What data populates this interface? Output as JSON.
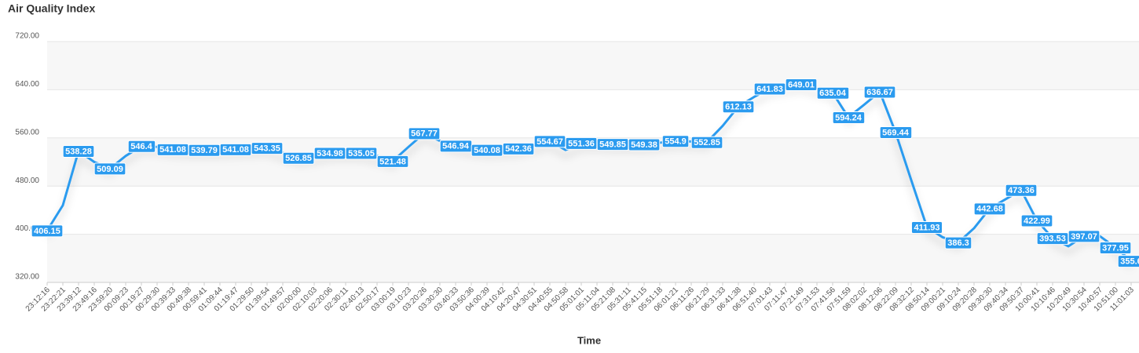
{
  "chart_data": {
    "type": "line",
    "title": "Air Quality Index",
    "x_label": "Time",
    "categories": [
      "23:12:16",
      "23:22:21",
      "23:39:12",
      "23:49:16",
      "23:59:20",
      "00:09:23",
      "00:19:27",
      "00:29:30",
      "00:39:33",
      "00:49:38",
      "00:59:41",
      "01:09:44",
      "01:19:47",
      "01:29:50",
      "01:39:54",
      "01:49:57",
      "02:00:00",
      "02:10:03",
      "02:20:06",
      "02:30:11",
      "02:40:13",
      "02:50:17",
      "03:00:19",
      "03:10:23",
      "03:20:26",
      "03:30:30",
      "03:40:33",
      "03:50:36",
      "04:00:39",
      "04:10:42",
      "04:20:47",
      "04:30:51",
      "04:40:55",
      "04:50:58",
      "05:01:01",
      "05:11:04",
      "05:21:08",
      "05:31:11",
      "05:41:15",
      "05:51:18",
      "06:01:21",
      "06:11:26",
      "06:21:29",
      "06:31:33",
      "06:41:38",
      "06:51:40",
      "07:01:43",
      "07:11:47",
      "07:21:49",
      "07:31:53",
      "07:41:56",
      "07:51:59",
      "08:02:02",
      "08:12:06",
      "08:22:09",
      "08:32:12",
      "08:50:14",
      "09:00:21",
      "09:10:24",
      "09:20:28",
      "09:30:30",
      "09:40:34",
      "09:50:37",
      "10:00:41",
      "10:10:46",
      "10:20:49",
      "10:30:54",
      "10:40:57",
      "10:51:00",
      "11:01:03"
    ],
    "series": [
      {
        "name": "Air Quality Index",
        "color": "#2b9bef",
        "values": [
          406.15,
          448,
          538.28,
          520,
          509.09,
          530,
          546.4,
          545,
          541.08,
          540,
          539.79,
          540,
          541.08,
          542,
          543.35,
          535,
          526.85,
          530,
          534.98,
          535,
          535.05,
          530,
          521.48,
          545,
          567.77,
          555,
          546.94,
          543,
          540.08,
          541,
          542.36,
          548,
          554.67,
          540,
          551.36,
          552,
          549.85,
          550,
          549.38,
          552,
          554.9,
          554,
          552.85,
          580,
          612.13,
          628,
          641.83,
          645,
          649.01,
          642,
          635.04,
          594.24,
          615,
          636.67,
          569.44,
          490,
          411.93,
          395,
          386.3,
          410,
          442.68,
          458,
          473.36,
          422.99,
          393.53,
          380,
          397.07,
          397,
          377.95,
          355.6
        ],
        "value_labels": [
          "406.15",
          null,
          "538.28",
          null,
          "509.09",
          null,
          "546.4",
          null,
          "541.08",
          null,
          "539.79",
          null,
          "541.08",
          null,
          "543.35",
          null,
          "526.85",
          null,
          "534.98",
          null,
          "535.05",
          null,
          "521.48",
          null,
          "567.77",
          null,
          "546.94",
          null,
          "540.08",
          null,
          "542.36",
          null,
          "554.67",
          null,
          "551.36",
          null,
          "549.85",
          null,
          "549.38",
          null,
          "554.9",
          null,
          "552.85",
          null,
          "612.13",
          null,
          "641.83",
          null,
          "649.01",
          null,
          "635.04",
          "594.24",
          null,
          "636.67",
          "569.44",
          null,
          "411.93",
          null,
          "386.3",
          null,
          "442.68",
          null,
          "473.36",
          "422.99",
          "393.53",
          null,
          "397.07",
          null,
          "377.95",
          "355.6"
        ]
      }
    ],
    "ylim": [
      320,
      720
    ],
    "yticks": [
      {
        "value": 320,
        "label": "320.00"
      },
      {
        "value": 400,
        "label": "400.00"
      },
      {
        "value": 480,
        "label": "480.00"
      },
      {
        "value": 560,
        "label": "560.00"
      },
      {
        "value": 640,
        "label": "640.00"
      },
      {
        "value": 720,
        "label": "720.00"
      }
    ],
    "grid": true
  }
}
